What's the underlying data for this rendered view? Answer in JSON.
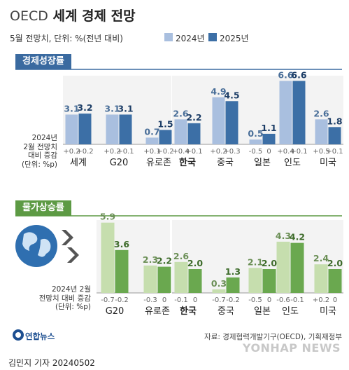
{
  "header": {
    "title_prefix": "OECD",
    "title_main": "세계 경제 전망",
    "subtitle": "5월 전망치, 단위: %(전년 대비)",
    "legend_2024": "2024년",
    "legend_2025": "2025년"
  },
  "colors": {
    "growth_2024": "#a9bfdf",
    "growth_2025": "#3c6fa6",
    "growth_badge": "#3a6aa0",
    "price_2024": "#c6deae",
    "price_2025": "#6aa84f",
    "price_badge": "#5d9a44",
    "value_dark": "#1c3d66",
    "value_light": "#4a6f99",
    "price_value_dark": "#3d6b2a",
    "price_value_light": "#6b8f56"
  },
  "growth": {
    "label": "경제성장률",
    "note_lines": [
      "2024년",
      "2월 전망치",
      "대비 증감",
      "(단위: %p)"
    ]
  },
  "price": {
    "label": "물가상승률",
    "note_lines": [
      "2024년 2월",
      "전망치 대비 증감",
      "(단위: %p)"
    ]
  },
  "footer": {
    "source": "자료: 경제협력개발기구(OECD), 기획재정부",
    "byline": "김민지 기자  20240502",
    "logo": "연합뉴스",
    "watermark": "YONHAP NEWS"
  },
  "chart_data": [
    {
      "type": "bar",
      "title": "경제성장률",
      "categories": [
        "세계",
        "G20",
        "유로존",
        "한국",
        "중국",
        "일본",
        "인도",
        "미국"
      ],
      "series": [
        {
          "name": "2024년",
          "values": [
            3.1,
            3.1,
            0.7,
            2.6,
            4.9,
            0.5,
            6.6,
            2.6
          ]
        },
        {
          "name": "2025년",
          "values": [
            3.2,
            3.1,
            1.5,
            2.2,
            4.5,
            1.1,
            6.6,
            1.8
          ]
        }
      ],
      "change_from_feb": {
        "2024": [
          "+0.2",
          "+0.2",
          "+0.1",
          "+0.4",
          "+0.2",
          "-0.5",
          "+0.4",
          "+0.5"
        ],
        "2025": [
          "+0.2",
          "+0.1",
          "+0.2",
          "+0.1",
          "+0.3",
          "0",
          "+0.1",
          "+0.1"
        ]
      },
      "ylim": [
        0,
        7
      ]
    },
    {
      "type": "bar",
      "title": "물가상승률",
      "categories": [
        "G20",
        "유로존",
        "한국",
        "중국",
        "일본",
        "인도",
        "미국"
      ],
      "series": [
        {
          "name": "2024년",
          "values": [
            5.9,
            2.3,
            2.6,
            0.3,
            2.1,
            4.3,
            2.4
          ]
        },
        {
          "name": "2025년",
          "values": [
            3.6,
            2.2,
            2.0,
            1.3,
            2.0,
            4.2,
            2.0
          ]
        }
      ],
      "change_from_feb": {
        "2024": [
          "-0.7",
          "-0.3",
          "-0.1",
          "-0.7",
          "-0.5",
          "-0.6",
          "+0.2"
        ],
        "2025": [
          "-0.2",
          "0",
          "0",
          "-0.2",
          "0",
          "-0.1",
          "0"
        ]
      },
      "ylim": [
        0,
        6
      ]
    }
  ]
}
